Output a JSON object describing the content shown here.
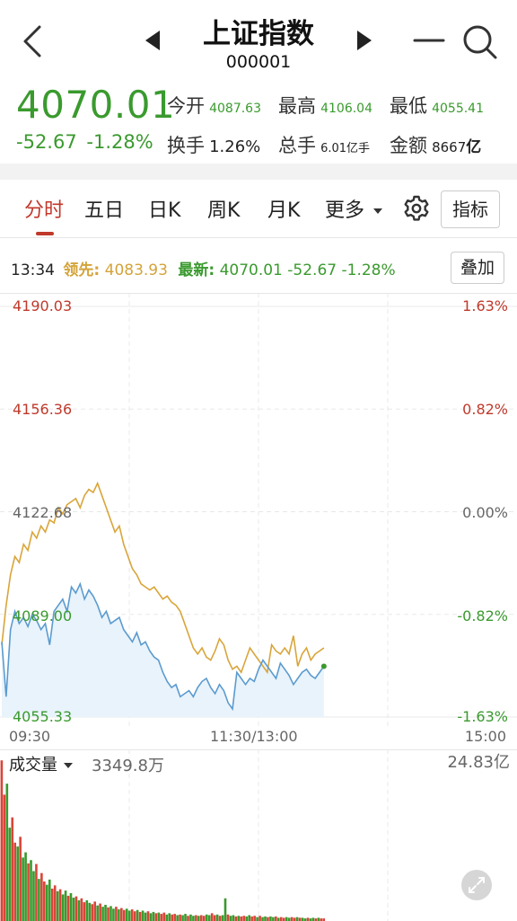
{
  "header": {
    "title": "上证指数",
    "code": "000001"
  },
  "quote": {
    "price": "4070.01",
    "change": "-52.67",
    "change_pct": "-1.28%",
    "stats": {
      "open_label": "今开",
      "open": "4087.63",
      "high_label": "最高",
      "high": "4106.04",
      "low_label": "最低",
      "low": "4055.41",
      "turnover_label": "换手",
      "turnover": "1.26%",
      "volume_label": "总手",
      "volume": "6.01",
      "volume_unit": "亿手",
      "amount_label": "金额",
      "amount": "8667",
      "amount_unit": "亿"
    }
  },
  "tabs": [
    {
      "label": "分时",
      "active": true
    },
    {
      "label": "五日"
    },
    {
      "label": "日K"
    },
    {
      "label": "周K"
    },
    {
      "label": "月K"
    },
    {
      "label": "更多"
    }
  ],
  "toolbar": {
    "indicator_label": "指标",
    "overlay_label": "叠加"
  },
  "info": {
    "time": "13:34",
    "lead_label": "领先:",
    "lead_value": "4083.93",
    "latest_label": "最新:",
    "latest_value": "4070.01",
    "latest_change": "-52.67",
    "latest_pct": "-1.28%"
  },
  "chart_data": {
    "type": "line",
    "y_left_ticks": [
      "4190.03",
      "4156.36",
      "4122.68",
      "4089.00",
      "4055.33"
    ],
    "y_right_ticks": [
      "1.63%",
      "0.82%",
      "0.00%",
      "-0.82%",
      "-1.63%"
    ],
    "x_ticks": [
      "09:30",
      "11:30/13:00",
      "15:00"
    ],
    "ylim": [
      4055.33,
      4190.03
    ],
    "prev_close": 4122.68,
    "series": [
      {
        "role": "leading",
        "color": "#d9a53a",
        "values": [
          4079,
          4092,
          4102,
          4108,
          4106,
          4112,
          4110,
          4116,
          4114,
          4118,
          4116,
          4120,
          4119,
          4124,
          4122,
          4125,
          4126,
          4127,
          4124,
          4128,
          4130,
          4129,
          4132,
          4128,
          4124,
          4120,
          4116,
          4118,
          4112,
          4108,
          4104,
          4102,
          4099,
          4098,
          4097,
          4098,
          4096,
          4094,
          4095,
          4093,
          4092,
          4090,
          4086,
          4082,
          4078,
          4076,
          4078,
          4075,
          4074,
          4077,
          4081,
          4079,
          4074,
          4071,
          4072,
          4070,
          4074,
          4078,
          4076,
          4074,
          4072,
          4070,
          4079,
          4077,
          4076,
          4078,
          4076,
          4082,
          4072,
          4076,
          4078,
          4074,
          4076,
          4077,
          4078
        ]
      },
      {
        "role": "latest",
        "color": "#5b9bcf",
        "values": [
          4080,
          4062,
          4084,
          4090,
          4086,
          4088,
          4085,
          4089,
          4087,
          4084,
          4086,
          4079,
          4090,
          4092,
          4094,
          4090,
          4098,
          4096,
          4099,
          4094,
          4097,
          4095,
          4092,
          4088,
          4090,
          4086,
          4087,
          4088,
          4084,
          4082,
          4080,
          4083,
          4079,
          4080,
          4077,
          4075,
          4074,
          4070,
          4067,
          4065,
          4066,
          4062,
          4063,
          4064,
          4062,
          4065,
          4067,
          4068,
          4065,
          4063,
          4066,
          4064,
          4060,
          4058,
          4070,
          4068,
          4066,
          4068,
          4067,
          4071,
          4074,
          4072,
          4070,
          4068,
          4073,
          4071,
          4069,
          4066,
          4068,
          4070,
          4071,
          4069,
          4068,
          4070,
          4072
        ]
      }
    ],
    "volume": {
      "label": "成交量",
      "current": "3349.8万",
      "max_label": "24.83亿",
      "bars": [
        24.8,
        19.5,
        21.2,
        14.4,
        16.0,
        12.1,
        11.5,
        13.0,
        9.8,
        10.6,
        8.9,
        9.4,
        7.7,
        8.8,
        6.5,
        7.4,
        6.1,
        5.6,
        6.4,
        5.0,
        5.5,
        4.6,
        4.9,
        4.1,
        4.7,
        3.9,
        4.3,
        3.6,
        3.8,
        3.2,
        3.5,
        2.9,
        3.2,
        2.8,
        2.6,
        3.0,
        2.4,
        2.7,
        2.2,
        2.5,
        2.1,
        2.3,
        1.9,
        2.2,
        1.8,
        2.0,
        1.7,
        1.9,
        1.6,
        1.8,
        1.5,
        1.7,
        1.4,
        1.6,
        1.3,
        1.5,
        1.2,
        1.4,
        1.2,
        1.3,
        1.1,
        1.3,
        1.0,
        1.2,
        1.0,
        1.1,
        0.9,
        1.0,
        0.9,
        1.1,
        0.8,
        1.0,
        0.8,
        0.9,
        0.8,
        0.9,
        0.8,
        1.0,
        0.9,
        1.2,
        0.9,
        1.0,
        0.8,
        0.9,
        3.5,
        1.0,
        0.8,
        0.9,
        0.7,
        0.8,
        0.7,
        0.8,
        0.7,
        0.9,
        0.7,
        0.8,
        0.6,
        0.8,
        0.6,
        0.7,
        0.6,
        0.7,
        0.6,
        0.7,
        0.5,
        0.6,
        0.5,
        0.6,
        0.5,
        0.6,
        0.5,
        0.6,
        0.5,
        0.5,
        0.4,
        0.5,
        0.4,
        0.5,
        0.4,
        0.5,
        0.4,
        0.4
      ]
    }
  }
}
